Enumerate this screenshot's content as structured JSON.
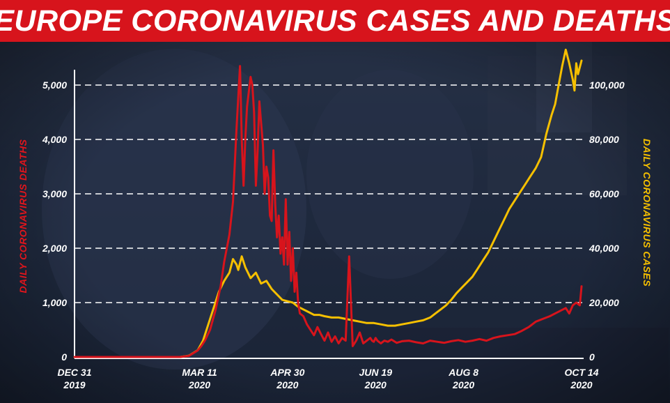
{
  "colors": {
    "title_bg": "#d7141c",
    "deaths": "#d7141c",
    "cases": "#f6c000",
    "deaths_label": "#e0151c",
    "cases_label": "#f6c000",
    "grid": "#ffffff",
    "background": "#1d2536"
  },
  "chart_data": {
    "type": "line",
    "title": "EUROPE CORONAVIRUS CASES AND DEATHS",
    "ylabel_left": "DAILY CORONAVIRUS DEATHS",
    "ylabel_right": "DAILY CORONAVIRUS CASES",
    "ylim_left": [
      0,
      5000
    ],
    "ylim_right": [
      0,
      100000
    ],
    "yticks_left": [
      "0",
      "1,000",
      "2,000",
      "3,000",
      "4,000",
      "5,000"
    ],
    "yticks_right": [
      "0",
      "20,000",
      "40,000",
      "60,000",
      "80,000",
      "100,000"
    ],
    "x_date_labels": [
      {
        "day": 0,
        "line1": "DEC 31",
        "line2": "2019"
      },
      {
        "day": 71,
        "line1": "MAR 11",
        "line2": "2020"
      },
      {
        "day": 121,
        "line1": "APR 30",
        "line2": "2020"
      },
      {
        "day": 171,
        "line1": "JUN 19",
        "line2": "2020"
      },
      {
        "day": 221,
        "line1": "AUG 8",
        "line2": "2020"
      },
      {
        "day": 288,
        "line1": "OCT 14",
        "line2": "2020"
      }
    ],
    "grid": true,
    "series": [
      {
        "name": "Daily coronavirus deaths",
        "axis": "left",
        "x": [
          0,
          60,
          65,
          70,
          72,
          74,
          77,
          80,
          83,
          85,
          88,
          90,
          92,
          94,
          95,
          96,
          97,
          98,
          100,
          101,
          102,
          103,
          104,
          105,
          107,
          108,
          109,
          110,
          111,
          112,
          113,
          114,
          115,
          116,
          117,
          118,
          119,
          120,
          121,
          122,
          123,
          124,
          125,
          126,
          127,
          128,
          130,
          132,
          134,
          136,
          138,
          140,
          142,
          144,
          146,
          148,
          150,
          152,
          154,
          156,
          158,
          160,
          162,
          164,
          166,
          168,
          169,
          170,
          171,
          172,
          174,
          176,
          178,
          180,
          183,
          186,
          190,
          194,
          198,
          202,
          206,
          210,
          214,
          218,
          222,
          226,
          230,
          234,
          238,
          242,
          246,
          250,
          254,
          258,
          262,
          266,
          270,
          273,
          276,
          279,
          281,
          283,
          285,
          287,
          288
        ],
        "values": [
          0,
          0,
          20,
          120,
          200,
          300,
          500,
          850,
          1300,
          1750,
          2250,
          2850,
          4200,
          5350,
          4000,
          3150,
          4000,
          4600,
          5150,
          5000,
          4500,
          3150,
          3800,
          4700,
          3900,
          3000,
          3500,
          3300,
          2600,
          2500,
          3800,
          2800,
          2200,
          2600,
          1900,
          2200,
          1700,
          2900,
          1700,
          2300,
          1400,
          2000,
          1200,
          1550,
          1000,
          800,
          750,
          600,
          500,
          400,
          550,
          420,
          300,
          450,
          280,
          380,
          250,
          350,
          300,
          1850,
          200,
          300,
          450,
          250,
          300,
          350,
          300,
          280,
          350,
          300,
          250,
          300,
          280,
          320,
          260,
          290,
          300,
          270,
          250,
          300,
          280,
          260,
          290,
          310,
          280,
          300,
          330,
          300,
          350,
          380,
          400,
          420,
          480,
          550,
          650,
          700,
          750,
          800,
          850,
          900,
          800,
          950,
          1000,
          950,
          1300
        ]
      },
      {
        "name": "Daily coronavirus cases",
        "axis": "right",
        "x": [
          0,
          60,
          65,
          70,
          73,
          76,
          79,
          82,
          85,
          88,
          90,
          92,
          93,
          95,
          97,
          100,
          103,
          106,
          109,
          112,
          115,
          118,
          121,
          124,
          127,
          130,
          133,
          136,
          139,
          142,
          146,
          150,
          154,
          158,
          162,
          166,
          170,
          174,
          178,
          182,
          186,
          190,
          194,
          198,
          202,
          205,
          208,
          211,
          214,
          217,
          220,
          223,
          226,
          229,
          232,
          235,
          238,
          241,
          244,
          247,
          250,
          253,
          256,
          259,
          262,
          265,
          268,
          271,
          273,
          275,
          277,
          279,
          281,
          283,
          284,
          285,
          286,
          288
        ],
        "values": [
          0,
          0,
          500,
          2500,
          6000,
          12000,
          18000,
          24000,
          28000,
          31000,
          36000,
          34000,
          32000,
          37000,
          33000,
          29000,
          31000,
          27000,
          28000,
          25000,
          23000,
          21000,
          20500,
          20000,
          18500,
          17500,
          16500,
          15500,
          15500,
          15000,
          14500,
          14500,
          14000,
          13500,
          13000,
          12500,
          12500,
          12000,
          11500,
          11500,
          12000,
          12500,
          13000,
          13500,
          14500,
          16000,
          17500,
          19000,
          21000,
          23500,
          25500,
          27500,
          29500,
          32500,
          35500,
          38500,
          42500,
          46500,
          50500,
          54500,
          57500,
          60500,
          63500,
          66500,
          69500,
          73500,
          82000,
          89000,
          93000,
          100000,
          107000,
          113000,
          108000,
          102000,
          98000,
          108000,
          104000,
          109000
        ]
      }
    ]
  }
}
